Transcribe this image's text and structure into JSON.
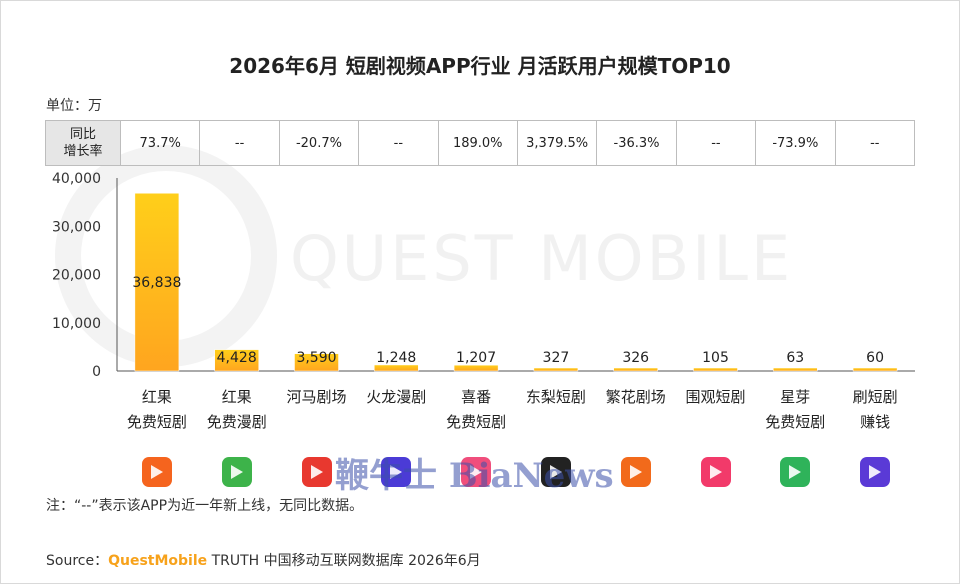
{
  "title": "2026年6月 短剧视频APP行业 月活跃用户规模TOP10",
  "unit_label": "单位：万",
  "growth_row": {
    "header_line1": "同比",
    "header_line2": "增长率",
    "values": [
      "73.7%",
      "--",
      "-20.7%",
      "--",
      "189.0%",
      "3,379.5%",
      "-36.3%",
      "--",
      "-73.9%",
      "--"
    ]
  },
  "watermark": "QUEST MOBILE",
  "overlay_watermark": "鞭牛士 BiaNews",
  "note": "注：“--”表示该APP为近一年新上线，无同比数据。",
  "source": {
    "prefix": "Source：",
    "brand": "QuestMobile",
    "rest": " TRUTH 中国移动互联网数据库 2026年6月"
  },
  "icons": [
    {
      "name": "hongguo-app-icon",
      "color": "#f5641e"
    },
    {
      "name": "hongguo-manju-app-icon",
      "color": "#3db34a"
    },
    {
      "name": "hema-app-icon",
      "color": "#e8382f"
    },
    {
      "name": "huolong-app-icon",
      "color": "#4b3bd6"
    },
    {
      "name": "xifan-app-icon",
      "color": "#f04e7c"
    },
    {
      "name": "dongli-app-icon",
      "color": "#222222"
    },
    {
      "name": "fanhua-app-icon",
      "color": "#f26a1b"
    },
    {
      "name": "weiguan-app-icon",
      "color": "#f23a6a"
    },
    {
      "name": "xingya-app-icon",
      "color": "#2fb35a"
    },
    {
      "name": "shuaduanju-app-icon",
      "color": "#5a3ad6"
    }
  ],
  "chart_data": {
    "type": "bar",
    "title": "2026年6月 短剧视频APP行业 月活跃用户规模TOP10",
    "ylabel": "单位：万",
    "ylim": [
      0,
      40000
    ],
    "yticks": [
      "40,000",
      "30,000",
      "20,000",
      "10,000",
      "0"
    ],
    "ytick_values": [
      40000,
      30000,
      20000,
      10000,
      0
    ],
    "categories": [
      [
        "红果",
        "免费短剧"
      ],
      [
        "红果",
        "免费漫剧"
      ],
      [
        "河马剧场"
      ],
      [
        "火龙漫剧"
      ],
      [
        "喜番",
        "免费短剧"
      ],
      [
        "东梨短剧"
      ],
      [
        "繁花剧场"
      ],
      [
        "围观短剧"
      ],
      [
        "星芽",
        "免费短剧"
      ],
      [
        "刷短剧",
        "赚钱"
      ]
    ],
    "values": [
      36838,
      4428,
      3590,
      1248,
      1207,
      327,
      326,
      105,
      63,
      60
    ],
    "value_labels": [
      "36,838",
      "4,428",
      "3,590",
      "1,248",
      "1,207",
      "327",
      "326",
      "105",
      "63",
      "60"
    ],
    "bar_color_top": "#ffcf1a",
    "bar_color_bottom": "#ffa51f"
  }
}
